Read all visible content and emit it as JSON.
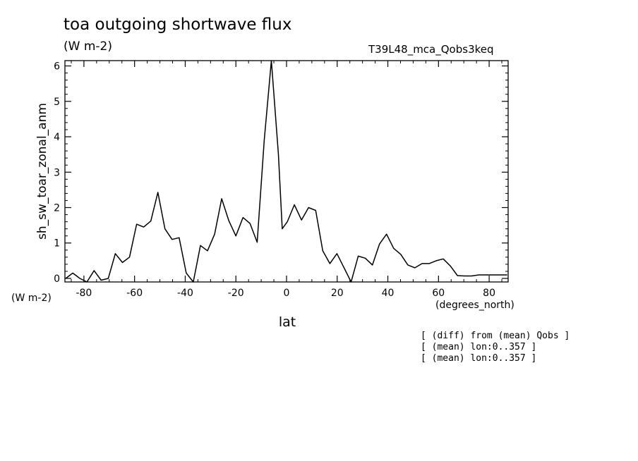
{
  "chart_data": {
    "type": "line",
    "title": "toa outgoing shortwave flux",
    "units": "(W m-2)",
    "run_id": "T39L48_mca_Qobs3keq",
    "ylabel": "sh_sw_toar_zonal_anm",
    "yunits": "(W m-2)",
    "xlabel": "lat",
    "xunits": "(degrees_north)",
    "xlim": [
      -87.5,
      87.5
    ],
    "ylim": [
      -0.1,
      6.15
    ],
    "xticks": [
      -80,
      -60,
      -40,
      -20,
      0,
      20,
      40,
      60,
      80
    ],
    "xtick_labels": [
      "-80",
      "-60",
      "-40",
      "-20",
      "0",
      "20",
      "40",
      "60",
      "80"
    ],
    "yticks": [
      0,
      1,
      2,
      3,
      4,
      5,
      6
    ],
    "ytick_labels": [
      "0",
      "1",
      "2",
      "3",
      "4",
      "5",
      "6"
    ],
    "series": [
      {
        "x": [
          -87.2,
          -84.4,
          -81.6,
          -78.8,
          -76.0,
          -73.2,
          -70.4,
          -67.6,
          -64.8,
          -62.0,
          -59.2,
          -56.4,
          -53.6,
          -50.8,
          -48.0,
          -45.2,
          -42.4,
          -39.6,
          -36.8,
          -34.0,
          -31.2,
          -28.4,
          -25.6,
          -22.8,
          -20.0,
          -17.2,
          -14.4,
          -11.6,
          -8.8,
          -6.0,
          -3.2,
          -1.7,
          0.3,
          3.1,
          5.9,
          8.7,
          11.5,
          14.3,
          17.1,
          19.9,
          22.7,
          25.5,
          28.3,
          31.1,
          33.9,
          36.7,
          39.5,
          42.3,
          45.1,
          47.9,
          50.7,
          53.5,
          56.3,
          59.1,
          61.9,
          64.7,
          67.5,
          70.3,
          73.1,
          75.9,
          78.7,
          81.5,
          84.3,
          87.1
        ],
        "values": [
          0.0,
          0.15,
          0.0,
          -0.1,
          0.22,
          -0.05,
          0.0,
          0.7,
          0.45,
          0.6,
          1.53,
          1.45,
          1.62,
          2.43,
          1.4,
          1.1,
          1.15,
          0.15,
          -0.1,
          0.93,
          0.78,
          1.25,
          2.25,
          1.63,
          1.2,
          1.72,
          1.55,
          1.02,
          3.9,
          6.15,
          3.5,
          1.4,
          1.6,
          2.08,
          1.65,
          2.0,
          1.92,
          0.78,
          0.42,
          0.7,
          0.3,
          -0.1,
          0.63,
          0.57,
          0.38,
          0.97,
          1.25,
          0.85,
          0.68,
          0.38,
          0.3,
          0.42,
          0.42,
          0.5,
          0.55,
          0.35,
          0.08,
          0.07,
          0.07,
          0.1,
          0.1,
          0.1,
          0.1,
          0.1
        ]
      }
    ],
    "grid": false
  },
  "notes": [
    "[ (diff) from (mean) Qobs ]",
    "[ (mean) lon:0..357 ]",
    "[ (mean) lon:0..357 ]"
  ]
}
